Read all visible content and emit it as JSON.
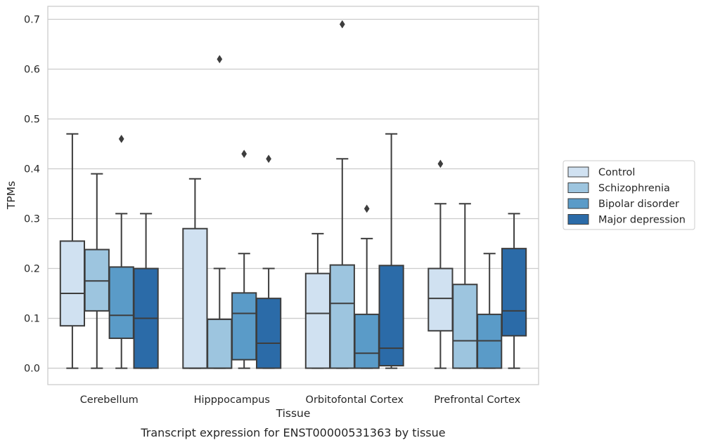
{
  "chart_data": {
    "type": "box",
    "caption": "Transcript expression for ENST00000531363 by tissue",
    "xlabel": "Tissue",
    "ylabel": "TPMs",
    "ylim": [
      -0.033,
      0.726
    ],
    "yticks": [
      0.0,
      0.1,
      0.2,
      0.3,
      0.4,
      0.5,
      0.6,
      0.7
    ],
    "ytick_labels": [
      "0.0",
      "0.1",
      "0.2",
      "0.3",
      "0.4",
      "0.5",
      "0.6",
      "0.7"
    ],
    "grid": "y",
    "legend_position": "outside-right",
    "categories": [
      "Cerebellum",
      "Hipppocampus",
      "Orbitofontal Cortex",
      "Prefrontal Cortex"
    ],
    "series": [
      {
        "name": "Control",
        "color": "#d0e1f1",
        "boxes": [
          {
            "whislo": 0.0,
            "q1": 0.085,
            "med": 0.15,
            "q3": 0.255,
            "whishi": 0.47,
            "fliers": []
          },
          {
            "whislo": 0.0,
            "q1": 0.0,
            "med": 0.0,
            "q3": 0.28,
            "whishi": 0.38,
            "fliers": []
          },
          {
            "whislo": 0.0,
            "q1": 0.0,
            "med": 0.11,
            "q3": 0.19,
            "whishi": 0.27,
            "fliers": []
          },
          {
            "whislo": 0.0,
            "q1": 0.075,
            "med": 0.14,
            "q3": 0.2,
            "whishi": 0.33,
            "fliers": [
              0.41
            ]
          }
        ]
      },
      {
        "name": "Schizophrenia",
        "color": "#9dc5df",
        "boxes": [
          {
            "whislo": 0.0,
            "q1": 0.115,
            "med": 0.175,
            "q3": 0.238,
            "whishi": 0.39,
            "fliers": []
          },
          {
            "whislo": 0.0,
            "q1": 0.0,
            "med": 0.0,
            "q3": 0.098,
            "whishi": 0.2,
            "fliers": [
              0.62
            ]
          },
          {
            "whislo": 0.0,
            "q1": 0.0,
            "med": 0.13,
            "q3": 0.207,
            "whishi": 0.42,
            "fliers": [
              0.69
            ]
          },
          {
            "whislo": 0.0,
            "q1": 0.0,
            "med": 0.055,
            "q3": 0.168,
            "whishi": 0.33,
            "fliers": []
          }
        ]
      },
      {
        "name": "Bipolar disorder",
        "color": "#5a9bc8",
        "boxes": [
          {
            "whislo": 0.0,
            "q1": 0.06,
            "med": 0.106,
            "q3": 0.203,
            "whishi": 0.31,
            "fliers": [
              0.46
            ]
          },
          {
            "whislo": 0.0,
            "q1": 0.017,
            "med": 0.11,
            "q3": 0.151,
            "whishi": 0.23,
            "fliers": [
              0.43
            ]
          },
          {
            "whislo": 0.0,
            "q1": 0.0,
            "med": 0.03,
            "q3": 0.108,
            "whishi": 0.26,
            "fliers": [
              0.32
            ]
          },
          {
            "whislo": 0.0,
            "q1": 0.0,
            "med": 0.055,
            "q3": 0.108,
            "whishi": 0.23,
            "fliers": []
          }
        ]
      },
      {
        "name": "Major depression",
        "color": "#2b6ba8",
        "boxes": [
          {
            "whislo": 0.0,
            "q1": 0.0,
            "med": 0.1,
            "q3": 0.2,
            "whishi": 0.31,
            "fliers": []
          },
          {
            "whislo": 0.0,
            "q1": 0.0,
            "med": 0.05,
            "q3": 0.14,
            "whishi": 0.2,
            "fliers": [
              0.42
            ]
          },
          {
            "whislo": 0.0,
            "q1": 0.005,
            "med": 0.04,
            "q3": 0.206,
            "whishi": 0.47,
            "fliers": []
          },
          {
            "whislo": 0.0,
            "q1": 0.065,
            "med": 0.115,
            "q3": 0.24,
            "whishi": 0.31,
            "fliers": []
          }
        ]
      }
    ]
  },
  "colors": {
    "grid": "#cccccc",
    "frame": "#cccccc",
    "line": "#3d3d3d"
  }
}
